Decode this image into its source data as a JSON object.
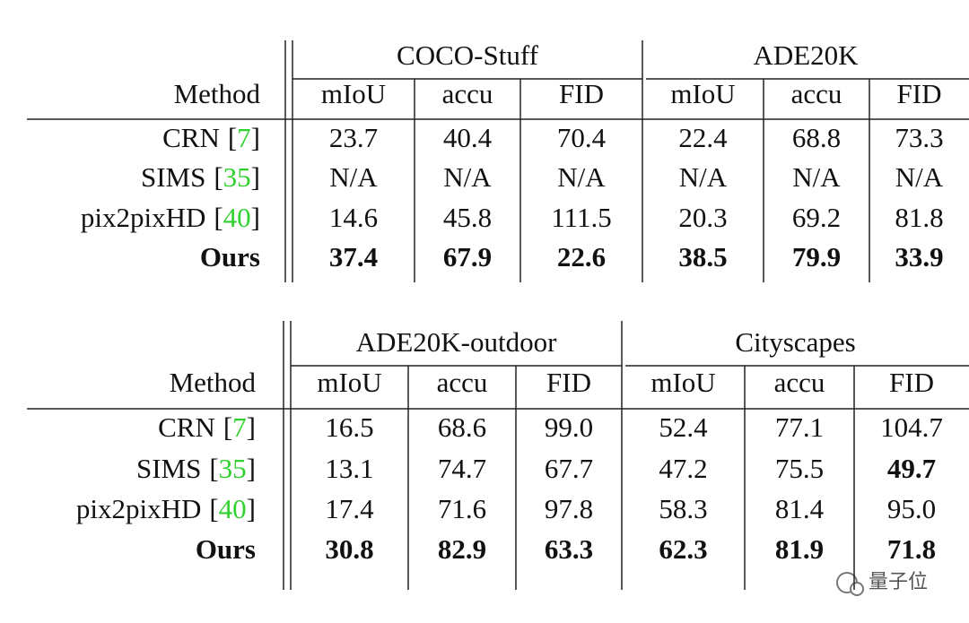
{
  "brackets": [
    "[",
    "]"
  ],
  "watermark": "量子位",
  "tables": [
    {
      "method_header": "Method",
      "groups": [
        "COCO-Stuff",
        "ADE20K"
      ],
      "columns": [
        "mIoU",
        "accu",
        "FID",
        "mIoU",
        "accu",
        "FID"
      ],
      "rows": [
        {
          "method": "CRN",
          "cite": "7",
          "values": [
            "23.7",
            "40.4",
            "70.4",
            "22.4",
            "68.8",
            "73.3"
          ]
        },
        {
          "method": "SIMS",
          "cite": "35",
          "values": [
            "N/A",
            "N/A",
            "N/A",
            "N/A",
            "N/A",
            "N/A"
          ]
        },
        {
          "method": "pix2pixHD",
          "cite": "40",
          "values": [
            "14.6",
            "45.8",
            "111.5",
            "20.3",
            "69.2",
            "81.8"
          ]
        },
        {
          "method": "Ours",
          "bold": true,
          "values": [
            "37.4",
            "67.9",
            "22.6",
            "38.5",
            "79.9",
            "33.9"
          ]
        }
      ]
    },
    {
      "method_header": "Method",
      "groups": [
        "ADE20K-outdoor",
        "Cityscapes"
      ],
      "columns": [
        "mIoU",
        "accu",
        "FID",
        "mIoU",
        "accu",
        "FID"
      ],
      "rows": [
        {
          "method": "CRN",
          "cite": "7",
          "values": [
            "16.5",
            "68.6",
            "99.0",
            "52.4",
            "77.1",
            "104.7"
          ]
        },
        {
          "method": "SIMS",
          "cite": "35",
          "values": [
            "13.1",
            "74.7",
            "67.7",
            "47.2",
            "75.5",
            "49.7"
          ],
          "bold_columns": [
            5
          ]
        },
        {
          "method": "pix2pixHD",
          "cite": "40",
          "values": [
            "17.4",
            "71.6",
            "97.8",
            "58.3",
            "81.4",
            "95.0"
          ]
        },
        {
          "method": "Ours",
          "bold": true,
          "values": [
            "30.8",
            "82.9",
            "63.3",
            "62.3",
            "81.9",
            "71.8"
          ]
        }
      ]
    }
  ]
}
